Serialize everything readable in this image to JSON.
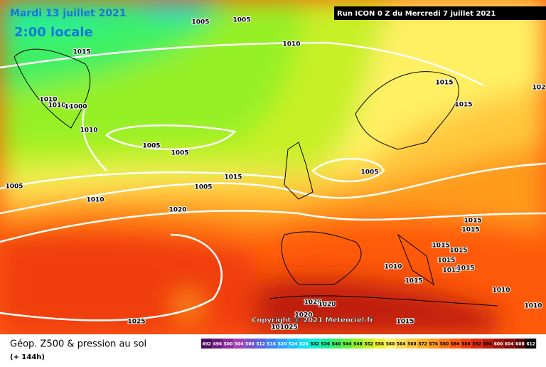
{
  "header": {
    "date": "Mardi 13 juillet 2021",
    "time": "2:00 locale",
    "run": "Run ICON 0 Z du Mercredi 7 juillet 2021"
  },
  "map": {
    "copyright": "Copyright © 2021 Meteociel.fr",
    "isobar_labels": [
      "1005",
      "1005",
      "1015",
      "1010",
      "1015",
      "1015",
      "102",
      "1010",
      "1010",
      "1010",
      "1010",
      "1000",
      "1005",
      "1005",
      "1005",
      "1010",
      "1015",
      "1005",
      "1020",
      "1005",
      "1010",
      "1015",
      "1015",
      "1015",
      "1015",
      "1015",
      "1015",
      "1015",
      "1015",
      "1010",
      "1010",
      "1025",
      "1020",
      "1020",
      "1020",
      "101025",
      "1015"
    ]
  },
  "footer": {
    "title": "Géop. Z500 & pression au sol",
    "lead": "(+ 144h)"
  },
  "colorbar": {
    "labels": [
      492,
      496,
      500,
      504,
      508,
      512,
      516,
      520,
      524,
      528,
      532,
      536,
      540,
      544,
      548,
      552,
      556,
      560,
      564,
      568,
      572,
      576,
      580,
      584,
      588,
      592,
      596,
      600,
      604,
      608,
      612
    ],
    "colors": [
      "#4b0a5a",
      "#6a1a7a",
      "#8a2c9a",
      "#a040b4",
      "#7850c8",
      "#5a64dc",
      "#3c82f0",
      "#28a0ff",
      "#1ebeff",
      "#14dcf0",
      "#10f0d2",
      "#14f0a0",
      "#3cf064",
      "#64f03c",
      "#96f028",
      "#c8f028",
      "#f0f032",
      "#fff064",
      "#ffdc50",
      "#ffc83c",
      "#ffb428",
      "#ff9a1e",
      "#ff7814",
      "#ff5a0a",
      "#f03c0a",
      "#dc280a",
      "#be1e0a",
      "#a0140a",
      "#820a0a",
      "#5a0505",
      "#000000"
    ]
  }
}
